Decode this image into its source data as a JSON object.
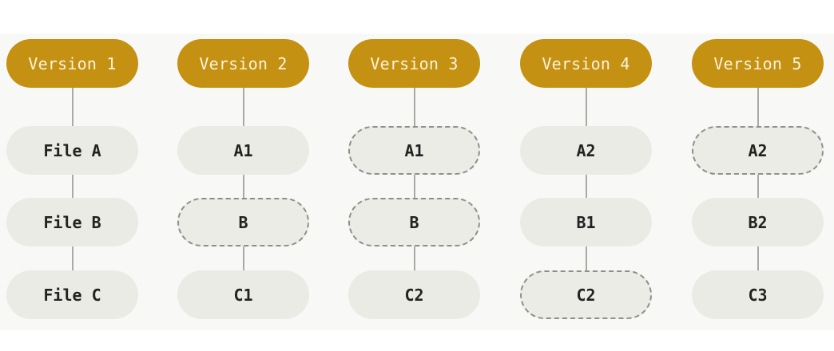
{
  "colors": {
    "version_fill": "#c49112",
    "version_text": "#fbf3dc",
    "file_fill": "#ebebe5",
    "file_text": "#222222",
    "connector": "#a9a9a5",
    "dashed_border": "#8f8f8a",
    "panel_background": "#f8f8f6"
  },
  "versions": [
    {
      "label": "Version 1",
      "files": [
        {
          "label": "File A",
          "style": "solid"
        },
        {
          "label": "File B",
          "style": "solid"
        },
        {
          "label": "File C",
          "style": "solid"
        }
      ]
    },
    {
      "label": "Version 2",
      "files": [
        {
          "label": "A1",
          "style": "solid"
        },
        {
          "label": "B",
          "style": "dashed"
        },
        {
          "label": "C1",
          "style": "solid"
        }
      ]
    },
    {
      "label": "Version 3",
      "files": [
        {
          "label": "A1",
          "style": "dashed"
        },
        {
          "label": "B",
          "style": "dashed"
        },
        {
          "label": "C2",
          "style": "solid"
        }
      ]
    },
    {
      "label": "Version 4",
      "files": [
        {
          "label": "A2",
          "style": "solid"
        },
        {
          "label": "B1",
          "style": "solid"
        },
        {
          "label": "C2",
          "style": "dashed"
        }
      ]
    },
    {
      "label": "Version 5",
      "files": [
        {
          "label": "A2",
          "style": "dashed"
        },
        {
          "label": "B2",
          "style": "solid"
        },
        {
          "label": "C3",
          "style": "solid"
        }
      ]
    }
  ]
}
